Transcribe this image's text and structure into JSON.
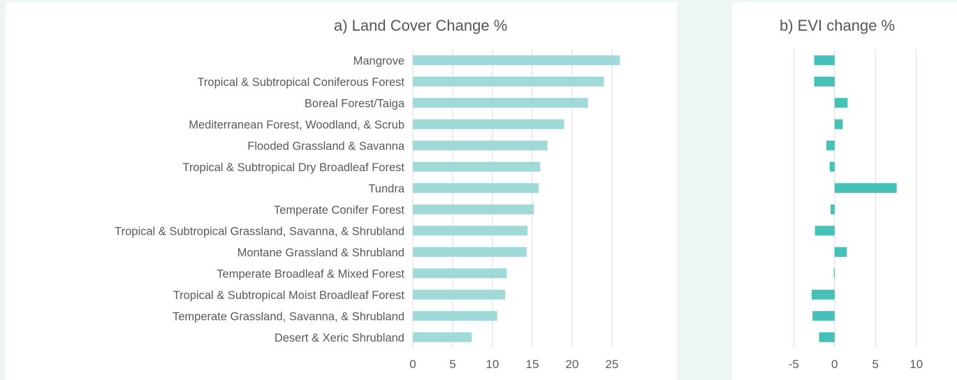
{
  "chart_data": [
    {
      "type": "bar",
      "orientation": "horizontal",
      "title": "a) Land Cover Change %",
      "categories": [
        "Mangrove",
        "Tropical & Subtropical Coniferous Forest",
        "Boreal Forest/Taiga",
        "Mediterranean Forest, Woodland, & Scrub",
        "Flooded Grassland & Savanna",
        "Tropical & Subtropical Dry Broadleaf Forest",
        "Tundra",
        "Temperate Conifer Forest",
        "Tropical & Subtropical Grassland, Savanna, & Shrubland",
        "Montane Grassland & Shrubland",
        "Temperate Broadleaf & Mixed Forest",
        "Tropical & Subtropical Moist Broadleaf Forest",
        "Temperate Grassland, Savanna, & Shrubland",
        "Desert & Xeric Shrubland"
      ],
      "values": [
        26.0,
        24.0,
        22.0,
        19.0,
        16.9,
        16.0,
        15.8,
        15.2,
        14.4,
        14.3,
        11.8,
        11.6,
        10.6,
        7.4
      ],
      "xlim": [
        0,
        30
      ],
      "xticks": [
        0,
        5,
        10,
        15,
        20,
        25
      ],
      "grid": true,
      "bar_color": "#9fd9d8"
    },
    {
      "type": "bar",
      "orientation": "horizontal",
      "title": "b) EVI change %",
      "categories": [
        "Mangrove",
        "Tropical & Subtropical Coniferous Forest",
        "Boreal Forest/Taiga",
        "Mediterranean Forest, Woodland, & Scrub",
        "Flooded Grassland & Savanna",
        "Tropical & Subtropical Dry Broadleaf Forest",
        "Tundra",
        "Temperate Conifer Forest",
        "Tropical & Subtropical Grassland, Savanna, & Shrubland",
        "Montane Grassland & Shrubland",
        "Temperate Broadleaf & Mixed Forest",
        "Tropical & Subtropical Moist Broadleaf Forest",
        "Temperate Grassland, Savanna, & Shrubland",
        "Desert & Xeric Shrubland"
      ],
      "values": [
        -2.5,
        -2.5,
        1.6,
        1.0,
        -1.0,
        -0.6,
        7.6,
        -0.5,
        -2.4,
        1.5,
        -0.1,
        -2.8,
        -2.7,
        -1.9
      ],
      "xlim": [
        -7.5,
        12.5
      ],
      "xticks": [
        -5,
        0,
        5,
        10
      ],
      "grid": true,
      "bar_color": "#45c1b8"
    }
  ]
}
